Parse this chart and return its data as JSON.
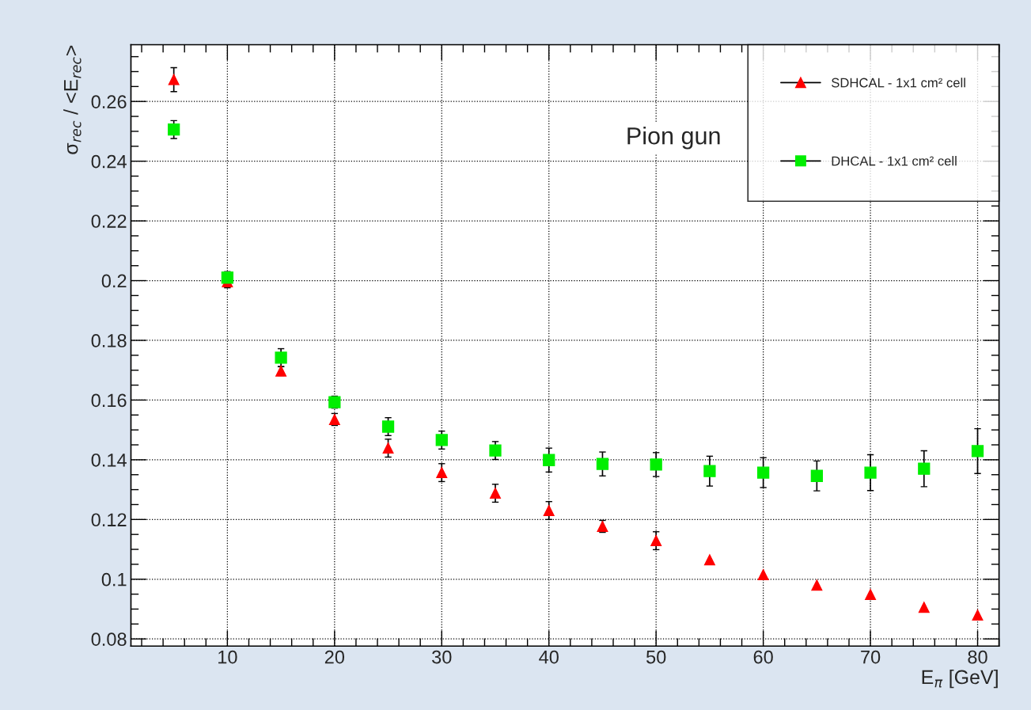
{
  "chart_data": {
    "type": "scatter",
    "xlabel": "E$_{π}$ [GeV]",
    "ylabel": "σ$_{rec}$ / <E$_{rec}$>",
    "x": [
      5,
      10,
      15,
      20,
      25,
      30,
      35,
      40,
      45,
      50,
      55,
      60,
      65,
      70,
      75,
      80
    ],
    "series": [
      {
        "name": "SDHCAL - 1x1 cm² cell",
        "color": "#ff0000",
        "marker": "triangle",
        "values": [
          0.2673,
          0.1996,
          0.1697,
          0.1535,
          0.1439,
          0.1357,
          0.1288,
          0.123,
          0.1177,
          0.1129,
          0.1065,
          0.1015,
          0.098,
          0.0949,
          0.0906,
          0.088
        ],
        "errors": [
          0.004,
          0.002,
          0.0015,
          0.002,
          0.003,
          0.003,
          0.003,
          0.003,
          0.002,
          0.003,
          null,
          null,
          null,
          null,
          null,
          null
        ]
      },
      {
        "name": "DHCAL - 1x1 cm² cell",
        "color": "#00ee00",
        "marker": "square",
        "values": [
          0.2506,
          0.201,
          0.1742,
          0.1593,
          0.1511,
          0.1466,
          0.1431,
          0.1399,
          0.1386,
          0.1384,
          0.1362,
          0.1357,
          0.1346,
          0.1357,
          0.137,
          0.1429
        ],
        "errors": [
          0.003,
          0.002,
          0.003,
          0.002,
          0.003,
          0.003,
          0.003,
          0.004,
          0.004,
          0.004,
          0.005,
          0.005,
          0.005,
          0.006,
          0.006,
          0.0075
        ]
      }
    ],
    "xlim": [
      1,
      82
    ],
    "ylim": [
      0.0776,
      0.279
    ],
    "xticks": [
      10,
      20,
      30,
      40,
      50,
      60,
      70,
      80
    ],
    "yticks": [
      0.08,
      0.1,
      0.12,
      0.14,
      0.16,
      0.18,
      0.2,
      0.22,
      0.24,
      0.26
    ],
    "grid": true,
    "legend": "top right",
    "annotations": [
      "Pion gun"
    ]
  }
}
